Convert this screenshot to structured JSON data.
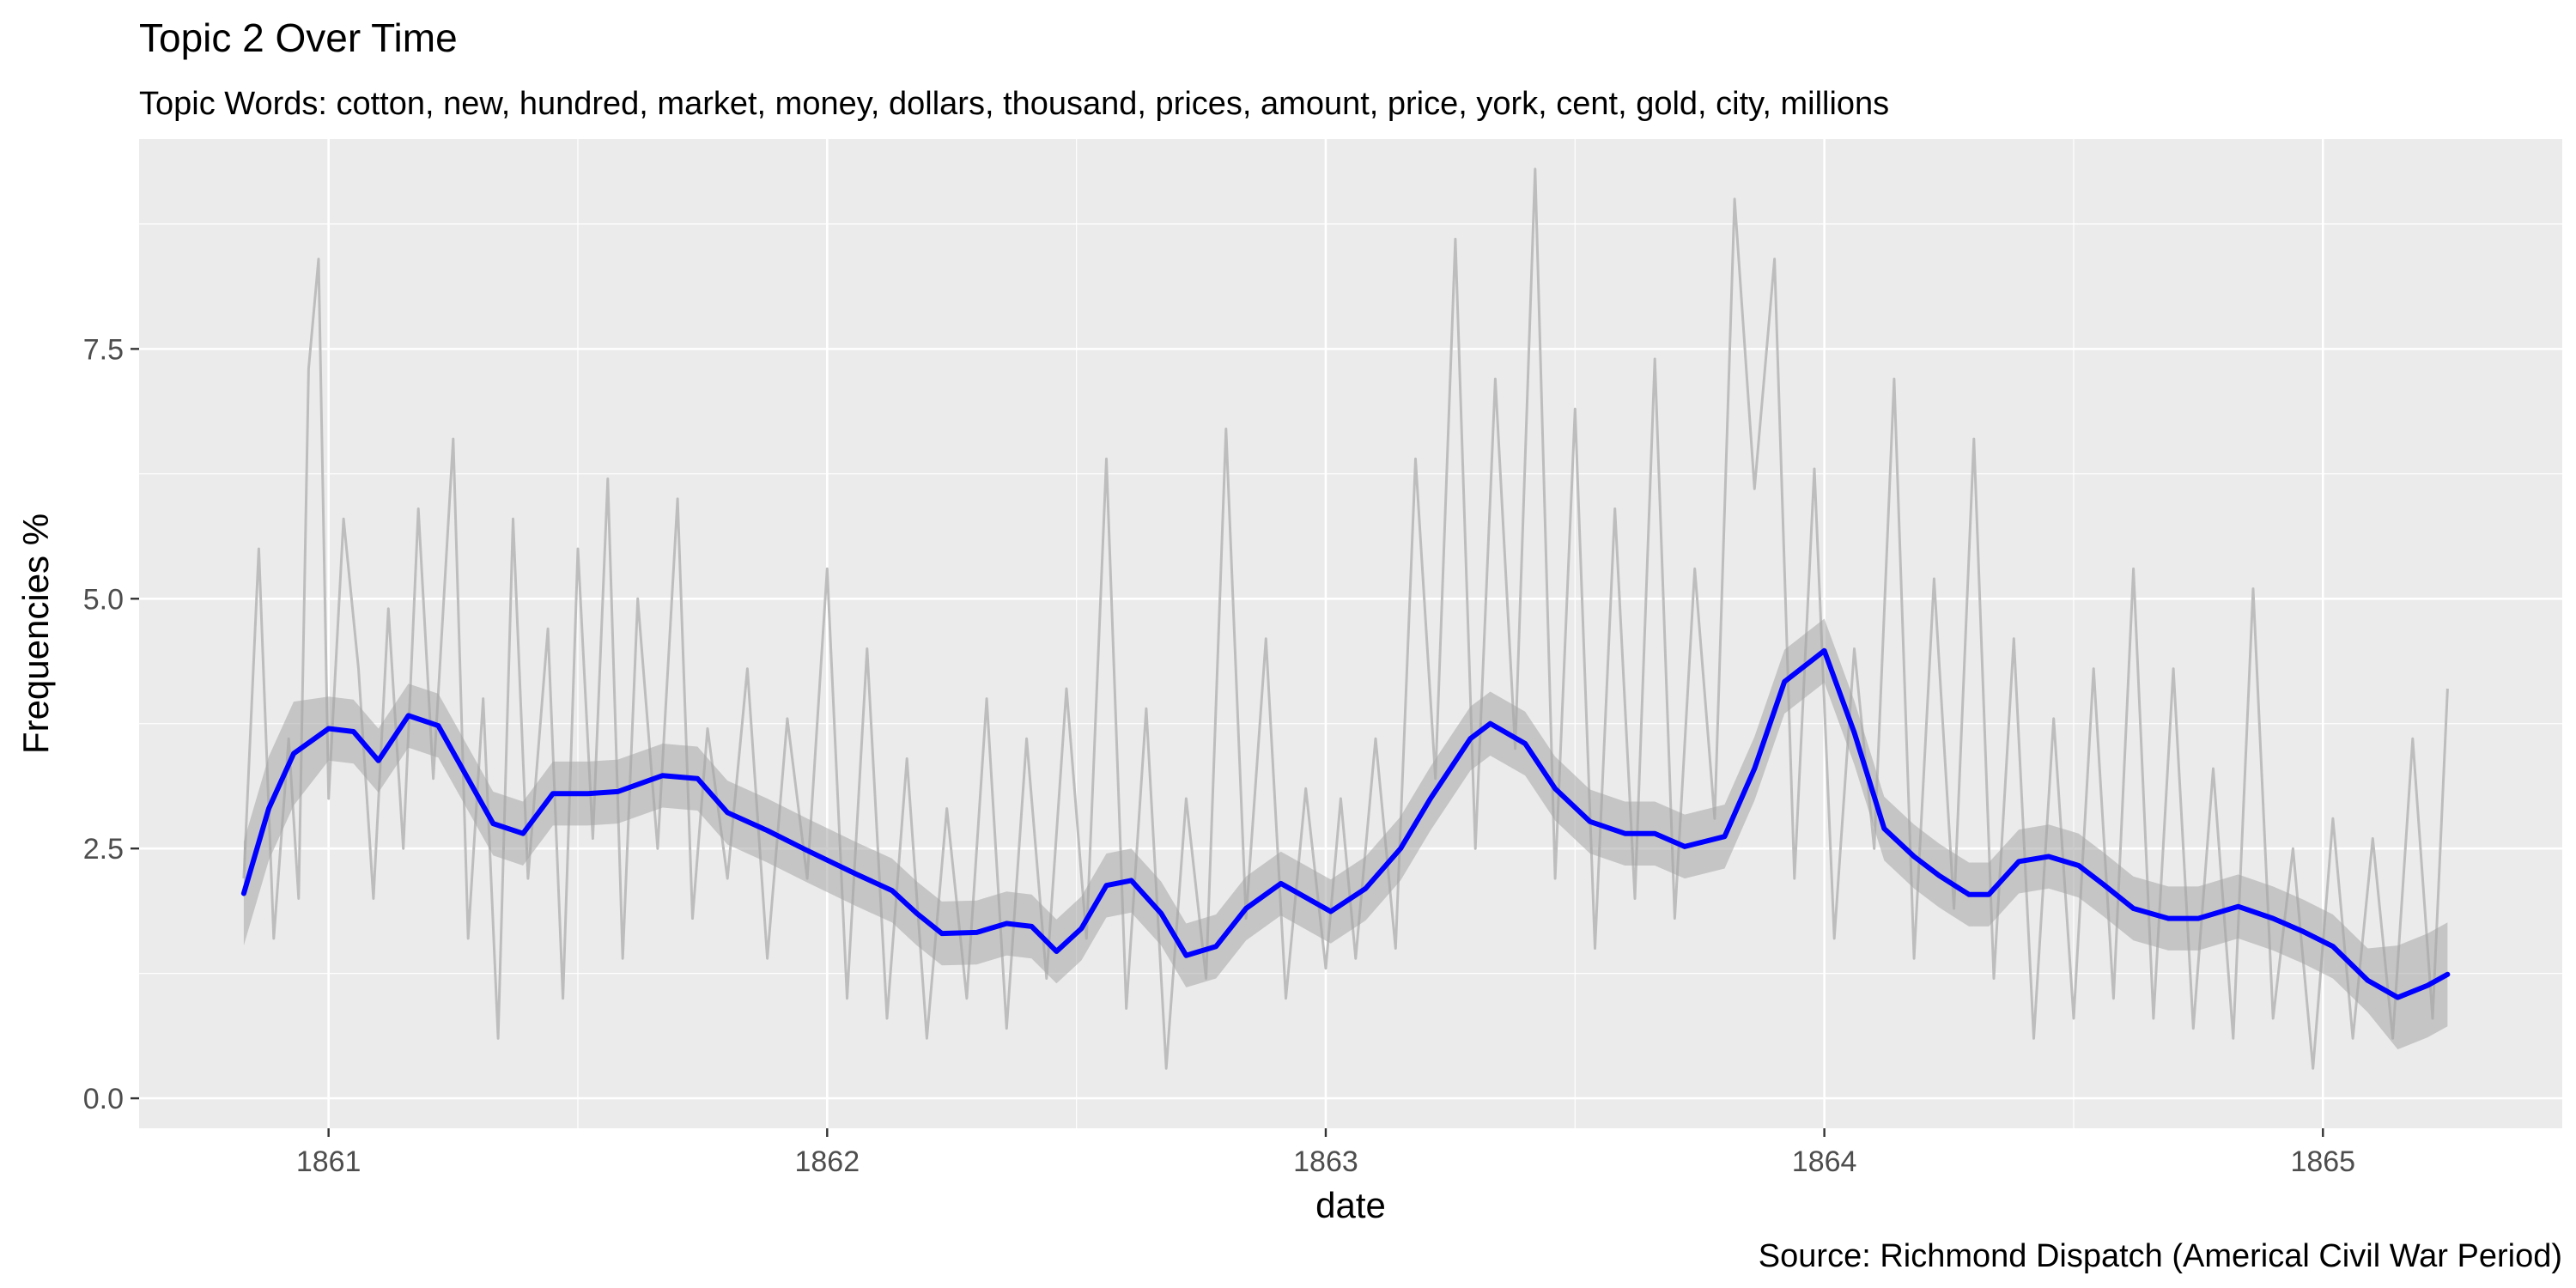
{
  "chart_data": {
    "type": "line",
    "title": "Topic 2 Over Time",
    "subtitle": "Topic Words: cotton, new, hundred, market, money, dollars, thousand, prices, amount, price, york, cent, gold, city, millions",
    "xlabel": "date",
    "ylabel": "Frequencies %",
    "caption": "Source: Richmond Dispatch (Americal Civil War Period)",
    "xlim": [
      1860.62,
      1865.48
    ],
    "ylim": [
      -0.3,
      9.6
    ],
    "x_ticks": [
      1861,
      1862,
      1863,
      1864,
      1865
    ],
    "x_tick_labels": [
      "1861",
      "1862",
      "1863",
      "1864",
      "1865"
    ],
    "y_ticks": [
      0.0,
      2.5,
      5.0,
      7.5
    ],
    "y_tick_labels": [
      "0.0",
      "2.5",
      "5.0",
      "7.5"
    ],
    "grid": true,
    "colors": {
      "panel_background": "#ebebeb",
      "grid": "#ffffff",
      "raw_series": "#bdbdbd",
      "smooth_series": "#0000ff",
      "confidence_band": "#a6a6a6"
    },
    "series": [
      {
        "style": "raw-daily",
        "x": [
          1860.83,
          1860.86,
          1860.89,
          1860.92,
          1860.94,
          1860.96,
          1860.98,
          1861.0,
          1861.03,
          1861.06,
          1861.09,
          1861.12,
          1861.15,
          1861.18,
          1861.21,
          1861.25,
          1861.28,
          1861.31,
          1861.34,
          1861.37,
          1861.4,
          1861.44,
          1861.47,
          1861.5,
          1861.53,
          1861.56,
          1861.59,
          1861.62,
          1861.66,
          1861.7,
          1861.73,
          1861.76,
          1861.8,
          1861.84,
          1861.88,
          1861.92,
          1861.96,
          1862.0,
          1862.04,
          1862.08,
          1862.12,
          1862.16,
          1862.2,
          1862.24,
          1862.28,
          1862.32,
          1862.36,
          1862.4,
          1862.44,
          1862.48,
          1862.52,
          1862.56,
          1862.6,
          1862.64,
          1862.68,
          1862.72,
          1862.76,
          1862.8,
          1862.84,
          1862.88,
          1862.92,
          1862.96,
          1863.0,
          1863.03,
          1863.06,
          1863.1,
          1863.14,
          1863.18,
          1863.22,
          1863.26,
          1863.3,
          1863.34,
          1863.38,
          1863.42,
          1863.46,
          1863.5,
          1863.54,
          1863.58,
          1863.62,
          1863.66,
          1863.7,
          1863.74,
          1863.78,
          1863.82,
          1863.86,
          1863.9,
          1863.94,
          1863.98,
          1864.02,
          1864.06,
          1864.1,
          1864.14,
          1864.18,
          1864.22,
          1864.26,
          1864.3,
          1864.34,
          1864.38,
          1864.42,
          1864.46,
          1864.5,
          1864.54,
          1864.58,
          1864.62,
          1864.66,
          1864.7,
          1864.74,
          1864.78,
          1864.82,
          1864.86,
          1864.9,
          1864.94,
          1864.98,
          1865.02,
          1865.06,
          1865.1,
          1865.14,
          1865.18,
          1865.22,
          1865.25
        ],
        "values": [
          2.2,
          5.5,
          1.6,
          3.6,
          2.0,
          7.3,
          8.4,
          3.0,
          5.8,
          4.3,
          2.0,
          4.9,
          2.5,
          5.9,
          3.2,
          6.6,
          1.6,
          4.0,
          0.6,
          5.8,
          2.2,
          4.7,
          1.0,
          5.5,
          2.6,
          6.2,
          1.4,
          5.0,
          2.5,
          6.0,
          1.8,
          3.7,
          2.2,
          4.3,
          1.4,
          3.8,
          2.2,
          5.3,
          1.0,
          4.5,
          0.8,
          3.4,
          0.6,
          2.9,
          1.0,
          4.0,
          0.7,
          3.6,
          1.2,
          4.1,
          1.6,
          6.4,
          0.9,
          3.9,
          0.3,
          3.0,
          1.2,
          6.7,
          1.8,
          4.6,
          1.0,
          3.1,
          1.3,
          3.0,
          1.4,
          3.6,
          1.5,
          6.4,
          3.2,
          8.6,
          2.5,
          7.2,
          3.5,
          9.3,
          2.2,
          6.9,
          1.5,
          5.9,
          2.0,
          7.4,
          1.8,
          5.3,
          2.8,
          9.0,
          6.1,
          8.4,
          2.2,
          6.3,
          1.6,
          4.5,
          2.5,
          7.2,
          1.4,
          5.2,
          1.9,
          6.6,
          1.2,
          4.6,
          0.6,
          3.8,
          0.8,
          4.3,
          1.0,
          5.3,
          0.8,
          4.3,
          0.7,
          3.3,
          0.6,
          5.1,
          0.8,
          2.5,
          0.3,
          2.8,
          0.6,
          2.6,
          0.6,
          3.6,
          0.8,
          4.1
        ]
      },
      {
        "style": "smoothed-trend",
        "x": [
          1860.83,
          1860.88,
          1860.93,
          1861.0,
          1861.05,
          1861.1,
          1861.16,
          1861.22,
          1861.33,
          1861.39,
          1861.45,
          1861.52,
          1861.58,
          1861.67,
          1861.74,
          1861.8,
          1861.88,
          1861.96,
          1862.06,
          1862.13,
          1862.18,
          1862.23,
          1862.3,
          1862.36,
          1862.41,
          1862.46,
          1862.51,
          1862.56,
          1862.61,
          1862.67,
          1862.72,
          1862.78,
          1862.84,
          1862.91,
          1863.01,
          1863.08,
          1863.15,
          1863.21,
          1863.29,
          1863.33,
          1863.4,
          1863.46,
          1863.53,
          1863.6,
          1863.66,
          1863.72,
          1863.8,
          1863.86,
          1863.92,
          1864.0,
          1864.06,
          1864.12,
          1864.18,
          1864.23,
          1864.29,
          1864.33,
          1864.39,
          1864.45,
          1864.51,
          1864.56,
          1864.62,
          1864.69,
          1864.75,
          1864.83,
          1864.9,
          1864.96,
          1865.02,
          1865.09,
          1865.15,
          1865.21,
          1865.25
        ],
        "values": [
          2.05,
          2.9,
          3.45,
          3.7,
          3.67,
          3.38,
          3.83,
          3.73,
          2.75,
          2.65,
          3.05,
          3.05,
          3.07,
          3.23,
          3.2,
          2.86,
          2.68,
          2.48,
          2.24,
          2.08,
          1.85,
          1.65,
          1.66,
          1.75,
          1.72,
          1.47,
          1.7,
          2.13,
          2.18,
          1.85,
          1.43,
          1.52,
          1.9,
          2.15,
          1.87,
          2.1,
          2.5,
          3.0,
          3.6,
          3.75,
          3.55,
          3.1,
          2.77,
          2.65,
          2.65,
          2.52,
          2.62,
          3.3,
          4.17,
          4.48,
          3.66,
          2.7,
          2.42,
          2.23,
          2.04,
          2.04,
          2.37,
          2.42,
          2.33,
          2.14,
          1.9,
          1.8,
          1.8,
          1.92,
          1.8,
          1.67,
          1.52,
          1.18,
          1.01,
          1.13,
          1.24
        ]
      }
    ]
  }
}
